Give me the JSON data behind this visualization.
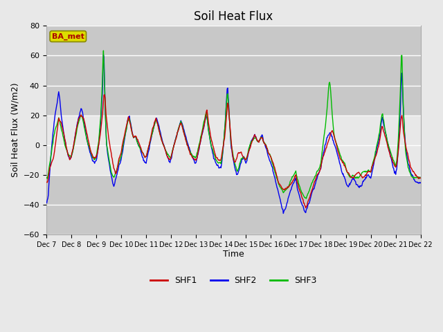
{
  "title": "Soil Heat Flux",
  "ylabel": "Soil Heat Flux (W/m2)",
  "xlabel": "Time",
  "ylim": [
    -60,
    80
  ],
  "yticks": [
    -60,
    -40,
    -20,
    0,
    20,
    40,
    60,
    80
  ],
  "colors": {
    "SHF1": "#cc0000",
    "SHF2": "#0000ee",
    "SHF3": "#00bb00"
  },
  "legend_label": "BA_met",
  "legend_box_facecolor": "#dddd00",
  "legend_box_edgecolor": "#888800",
  "legend_box_text_color": "#aa0000",
  "xtick_labels": [
    "Dec 7",
    "Dec 8",
    "Dec 9",
    "Dec 10",
    "Dec 11",
    "Dec 12",
    "Dec 13",
    "Dec 14",
    "Dec 15",
    "Dec 16",
    "Dec 17",
    "Dec 18",
    "Dec 19",
    "Dec 20",
    "Dec 21",
    "Dec 22"
  ],
  "plot_bg_color": "#e8e8e8",
  "inner_band_color": "#d8d8d8",
  "outer_band_color": "#c8c8c8",
  "grid_color": "#ffffff",
  "figsize": [
    6.4,
    4.8
  ],
  "dpi": 100
}
